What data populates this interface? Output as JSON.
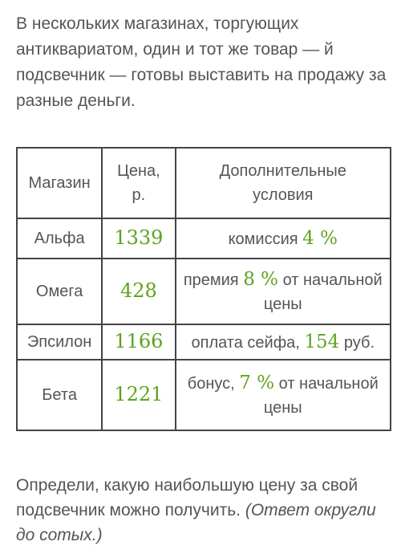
{
  "intro": {
    "text": "В нескольких магазинах, торгующих антиквариатом, один и тот же товар — й подсвечник — готовы выставить на продажу за разные деньги."
  },
  "table": {
    "headers": {
      "shop": "Магазин",
      "price_line1": "Цена,",
      "price_line2": "р.",
      "cond_line1": "Дополнительные",
      "cond_line2": "условия"
    },
    "rows": [
      {
        "shop": "Альфа",
        "price": "1339",
        "cond_pre": "комиссия ",
        "cond_num": "4 %",
        "cond_post": ""
      },
      {
        "shop": "Омега",
        "price": "428",
        "cond_pre": "премия ",
        "cond_num": "8 %",
        "cond_post": " от начальной цены"
      },
      {
        "shop": "Эпсилон",
        "price": "1166",
        "cond_pre": "оплата сейфа, ",
        "cond_num": "154",
        "cond_post": " руб."
      },
      {
        "shop": "Бета",
        "price": "1221",
        "cond_pre": "бонус, ",
        "cond_num": "7 %",
        "cond_post": " от начальной цены"
      }
    ]
  },
  "question": {
    "text": "Определи, какую наибольшую цену за свой подсвечник можно получить. ",
    "hint": "(Ответ округли до сотых.)"
  },
  "colors": {
    "text": "#555555",
    "accent_green": "#5ea31e",
    "border": "#444444"
  }
}
